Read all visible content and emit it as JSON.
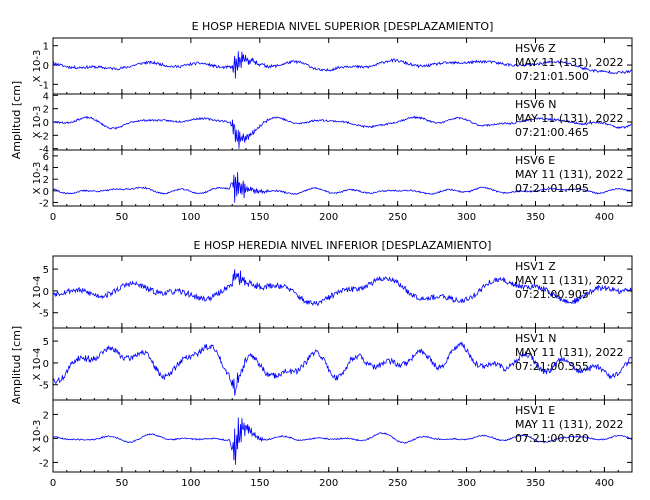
{
  "chart_data": {
    "type": "line",
    "x_range": [
      0,
      420
    ],
    "x_ticks": [
      0,
      50,
      100,
      150,
      200,
      250,
      300,
      350,
      400
    ],
    "line_color": "#0000ff",
    "panels": [
      {
        "title": "E HOSP HEREDIA NIVEL SUPERIOR [DESPLAZAMIENTO]",
        "ylabel": "Amplitud [cm]",
        "traces": [
          {
            "station": "HSV6",
            "component": "Z",
            "date": "MAY 11 (131), 2022",
            "time": "07:21:01.500",
            "scale": "X 10-3",
            "y_ticks": [
              -1,
              0,
              1
            ],
            "ylim": [
              -1.5,
              1.4
            ],
            "quiet_amp": 0.28,
            "peak": 1.35,
            "seed": 11
          },
          {
            "station": "HSV6",
            "component": "N",
            "date": "MAY 11 (131), 2022",
            "time": "07:21:00.465",
            "scale": "X 10-3",
            "y_ticks": [
              -4,
              -2,
              0,
              2,
              4
            ],
            "ylim": [
              -4.2,
              4.2
            ],
            "quiet_amp": 0.55,
            "peak": 3.8,
            "seed": 23
          },
          {
            "station": "HSV6",
            "component": "E",
            "date": "MAY 11 (131), 2022",
            "time": "07:21:01.495",
            "scale": "X 10-3",
            "y_ticks": [
              -2,
              0,
              2,
              4,
              6
            ],
            "ylim": [
              -2.6,
              7.0
            ],
            "quiet_amp": 0.5,
            "peak": 5.2,
            "seed": 37
          }
        ]
      },
      {
        "title": "E HOSP HEREDIA NIVEL INFERIOR [DESPLAZAMIENTO]",
        "ylabel": "Amplitud [cm]",
        "traces": [
          {
            "station": "HSV1",
            "component": "Z",
            "date": "MAY 11 (131), 2022",
            "time": "07:21:00.905",
            "scale": "X 10-4",
            "y_ticks": [
              -5,
              0,
              5
            ],
            "ylim": [
              -8.5,
              8.0
            ],
            "quiet_amp": 2.6,
            "peak": 5.5,
            "seed": 53
          },
          {
            "station": "HSV1",
            "component": "N",
            "date": "MAY 11 (131), 2022",
            "time": "07:21:00.355",
            "scale": "X 10-4",
            "y_ticks": [
              -5,
              0,
              5
            ],
            "ylim": [
              -8.5,
              8.0
            ],
            "quiet_amp": 2.8,
            "peak": 5.5,
            "seed": 71
          },
          {
            "station": "HSV1",
            "component": "E",
            "date": "MAY 11 (131), 2022",
            "time": "07:21:00.020",
            "scale": "X 10-3",
            "y_ticks": [
              -2,
              0,
              2
            ],
            "ylim": [
              -2.8,
              3.2
            ],
            "quiet_amp": 0.22,
            "peak": 2.9,
            "seed": 89
          }
        ]
      }
    ]
  }
}
